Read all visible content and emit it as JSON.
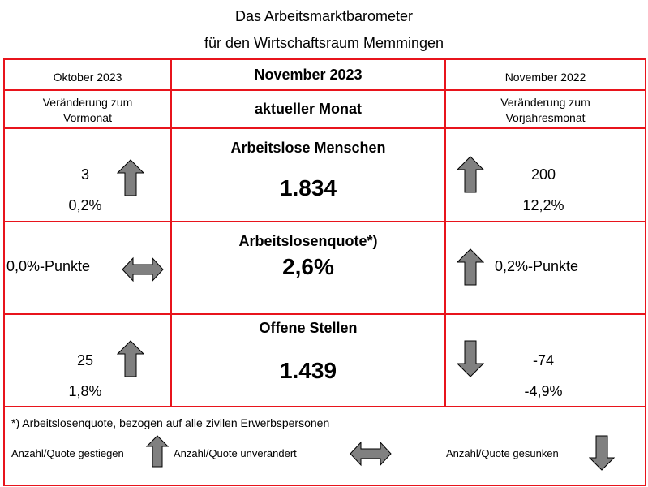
{
  "title_line1": "Das Arbeitsmarktbarometer",
  "title_line2": "für den Wirtschaftsraum Memmingen",
  "header": {
    "left_month": "Oktober 2023",
    "center_month": "November 2023",
    "right_month": "November 2022",
    "left_sub_line1": "Veränderung zum",
    "left_sub_line2": "Vormonat",
    "center_sub": "aktueller Monat",
    "right_sub_line1": "Veränderung zum",
    "right_sub_line2": "Vorjahresmonat"
  },
  "rows": [
    {
      "label": "Arbeitslose Menschen",
      "value": "1.834",
      "left_abs": "3",
      "left_pct": "0,2%",
      "left_trend": "up",
      "right_abs": "200",
      "right_pct": "12,2%",
      "right_trend": "up"
    },
    {
      "label": "Arbeitslosenquote*)",
      "value": "2,6%",
      "left_text": "0,0%-Punkte",
      "left_trend": "unchanged",
      "right_text": "0,2%-Punkte",
      "right_trend": "up"
    },
    {
      "label": "Offene Stellen",
      "value": "1.439",
      "left_abs": "25",
      "left_pct": "1,8%",
      "left_trend": "up",
      "right_abs": "-74",
      "right_pct": "-4,9%",
      "right_trend": "down"
    }
  ],
  "footnote": "*) Arbeitslosenquote, bezogen auf alle zivilen Erwerbspersonen",
  "legend": {
    "up": "Anzahl/Quote gestiegen",
    "unchanged": "Anzahl/Quote unverändert",
    "down": "Anzahl/Quote gesunken"
  },
  "colors": {
    "border": "#e8141c",
    "arrow_fill": "#808080"
  }
}
